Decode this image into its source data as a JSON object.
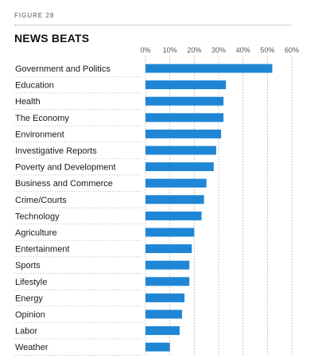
{
  "figure_label": "FIGURE 28",
  "chart_data": {
    "type": "bar",
    "orientation": "horizontal",
    "title": "NEWS BEATS",
    "xlabel": "",
    "ylabel": "",
    "xlim": [
      0,
      60
    ],
    "tick_values": [
      0,
      10,
      20,
      30,
      40,
      50,
      60
    ],
    "tick_labels": [
      "0%",
      "10%",
      "20%",
      "30%",
      "40%",
      "50%",
      "60%"
    ],
    "grid": true,
    "bar_color": "#1f86d6",
    "categories": [
      "Government and Politics",
      "Education",
      "Health",
      "The Economy",
      "Environment",
      "Investigative Reports",
      "Poverty and Development",
      "Business and Commerce",
      "Crime/Courts",
      "Technology",
      "Agriculture",
      "Entertainment",
      "Sports",
      "Lifestyle",
      "Energy",
      "Opinion",
      "Labor",
      "Weather"
    ],
    "values": [
      52,
      33,
      32,
      32,
      31,
      29,
      28,
      25,
      24,
      23,
      20,
      19,
      18,
      18,
      16,
      15,
      14,
      10
    ]
  }
}
